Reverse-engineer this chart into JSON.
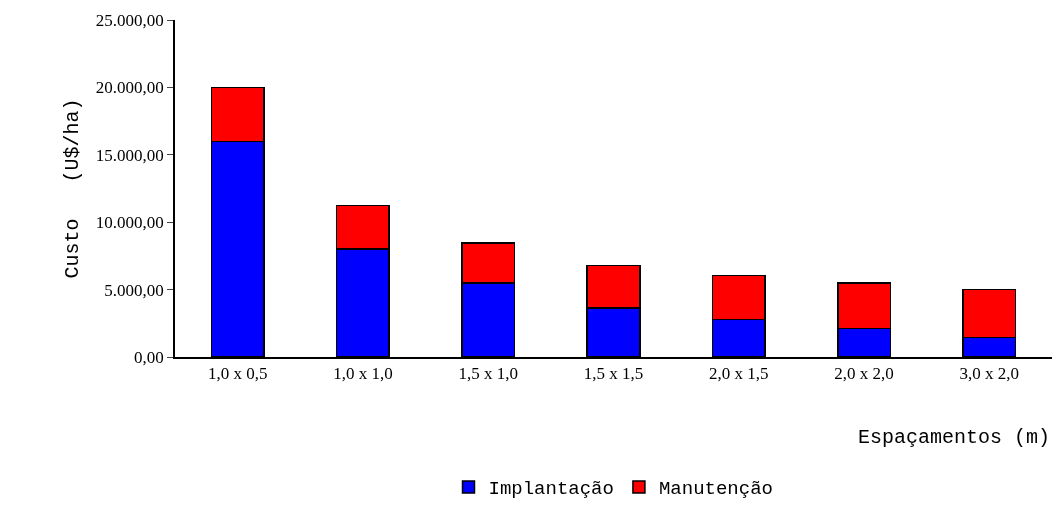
{
  "chart_data": {
    "type": "bar",
    "stacked": true,
    "xlabel": "Espaçamentos (m)",
    "ylabel": "Custo   (U$/ha)",
    "categories": [
      "1,0 x 0,5",
      "1,0 x 1,0",
      "1,5 x 1,0",
      "1,5 x 1,5",
      "2,0 x 1,5",
      "2,0 x 2,0",
      "3,0 x 2,0"
    ],
    "series": [
      {
        "name": "Implantação",
        "color": "#0000ff",
        "values": [
          16000,
          8000,
          5500,
          3650,
          2800,
          2100,
          1450
        ]
      },
      {
        "name": "Manutenção",
        "color": "#ff0000",
        "values": [
          4000,
          3250,
          2950,
          3150,
          3250,
          3400,
          3550
        ]
      }
    ],
    "ylim": [
      0,
      25000
    ],
    "yticks": [
      {
        "value": 0,
        "label": "0,00"
      },
      {
        "value": 5000,
        "label": "5.000,00"
      },
      {
        "value": 10000,
        "label": "10.000,00"
      },
      {
        "value": 15000,
        "label": "15.000,00"
      },
      {
        "value": 20000,
        "label": "20.000,00"
      },
      {
        "value": 25000,
        "label": "25.000,00"
      }
    ],
    "legend": "bottom"
  }
}
